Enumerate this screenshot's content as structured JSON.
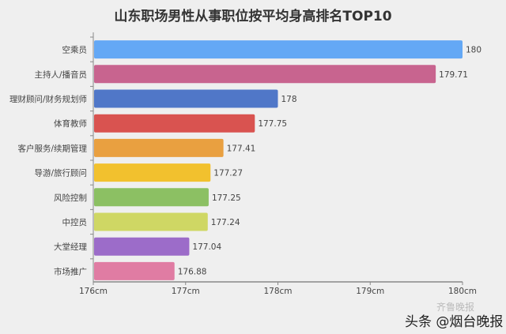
{
  "chart_data": {
    "type": "bar",
    "orientation": "horizontal",
    "title": "山东职场男性从事职位按平均身高排名TOP10",
    "categories": [
      "空乘员",
      "主持人/播音员",
      "理财顾问/财务规划师",
      "体育教师",
      "客户服务/续期管理",
      "导游/旅行顾问",
      "风险控制",
      "中控员",
      "大堂经理",
      "市场推广"
    ],
    "values": [
      180,
      179.71,
      178,
      177.75,
      177.41,
      177.27,
      177.25,
      177.24,
      177.04,
      176.88
    ],
    "value_labels": [
      "180",
      "179.71",
      "178",
      "177.75",
      "177.41",
      "177.27",
      "177.25",
      "177.24",
      "177.04",
      "176.88"
    ],
    "colors": [
      "#64a8f5",
      "#c8648f",
      "#5077c8",
      "#d95350",
      "#e9a040",
      "#f2c12e",
      "#8cc063",
      "#cfd764",
      "#9c6cc9",
      "#e07ca3"
    ],
    "xlim": [
      176,
      180
    ],
    "xticks": [
      "176cm",
      "177cm",
      "178cm",
      "179cm",
      "180cm"
    ],
    "xlabel": "",
    "ylabel": "",
    "grid": false
  },
  "watermark": {
    "main": "头条 @烟台晚报",
    "faint": "齐鲁晚报"
  }
}
